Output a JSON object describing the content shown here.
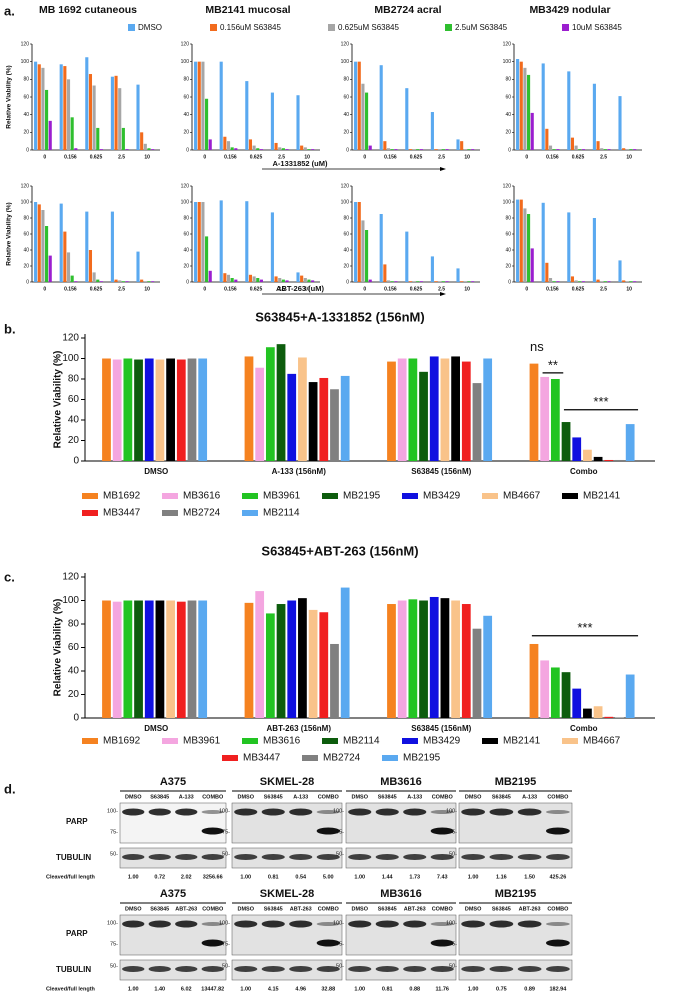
{
  "panel_labels": [
    "a.",
    "b.",
    "c.",
    "d."
  ],
  "chart_data": [
    {
      "type": "bar",
      "titles": [
        "MB 1692 cutaneous",
        "MB2141 mucosal",
        "MB2724 acral",
        "MB3429 nodular"
      ],
      "xlabels": [
        "A-1331852 (uM)",
        "ABT-263 (uM)"
      ],
      "ylabel": "Relative Viability (%)",
      "categories": [
        "0",
        "0.156",
        "0.625",
        "2.5",
        "10"
      ],
      "legend": [
        {
          "name": "DMSO",
          "color": "#5aa9f0"
        },
        {
          "name": "0.156uM S63845",
          "color": "#f26b1d"
        },
        {
          "name": "0.625uM S63845",
          "color": "#a6a6a6"
        },
        {
          "name": "2.5uM S63845",
          "color": "#2fbf2f"
        },
        {
          "name": "10uM S63845",
          "color": "#9b1ecf"
        }
      ],
      "ylim": [
        0,
        120
      ],
      "yticks": [
        0,
        20,
        40,
        60,
        80,
        100,
        120
      ],
      "subplots": [
        [
          {
            "series": [
              {
                "values": [
                  100,
                  97,
                  105,
                  83,
                  74
                ]
              },
              {
                "values": [
                  97,
                  95,
                  86,
                  84,
                  20
                ]
              },
              {
                "values": [
                  93,
                  80,
                  73,
                  70,
                  7
                ]
              },
              {
                "values": [
                  68,
                  37,
                  25,
                  25,
                  2
                ]
              },
              {
                "values": [
                  33,
                  2,
                  1,
                  1,
                  1
                ]
              }
            ]
          },
          {
            "series": [
              {
                "values": [
                  100,
                  100,
                  78,
                  65,
                  62
                ]
              },
              {
                "values": [
                  100,
                  15,
                  12,
                  8,
                  5
                ]
              },
              {
                "values": [
                  100,
                  10,
                  5,
                  3,
                  3
                ]
              },
              {
                "values": [
                  58,
                  3,
                  2,
                  2,
                  1
                ]
              },
              {
                "values": [
                  12,
                  2,
                  1,
                  1,
                  1
                ]
              }
            ]
          },
          {
            "series": [
              {
                "values": [
                  100,
                  96,
                  70,
                  43,
                  12
                ]
              },
              {
                "values": [
                  100,
                  10,
                  1,
                  1,
                  10
                ]
              },
              {
                "values": [
                  75,
                  2,
                  1,
                  1,
                  1
                ]
              },
              {
                "values": [
                  65,
                  1,
                  1,
                  1,
                  1
                ]
              },
              {
                "values": [
                  5,
                  1,
                  1,
                  1,
                  1
                ]
              }
            ]
          },
          {
            "series": [
              {
                "values": [
                  103,
                  98,
                  89,
                  75,
                  61
                ]
              },
              {
                "values": [
                  100,
                  24,
                  14,
                  10,
                  2
                ]
              },
              {
                "values": [
                  93,
                  5,
                  5,
                  2,
                  1
                ]
              },
              {
                "values": [
                  85,
                  1,
                  1,
                  1,
                  1
                ]
              },
              {
                "values": [
                  42,
                  1,
                  1,
                  1,
                  1
                ]
              }
            ]
          }
        ],
        [
          {
            "series": [
              {
                "values": [
                  100,
                  98,
                  88,
                  88,
                  38
                ]
              },
              {
                "values": [
                  97,
                  63,
                  40,
                  3,
                  3
                ]
              },
              {
                "values": [
                  90,
                  37,
                  12,
                  2,
                  1
                ]
              },
              {
                "values": [
                  70,
                  8,
                  3,
                  1,
                  1
                ]
              },
              {
                "values": [
                  33,
                  1,
                  1,
                  1,
                  1
                ]
              }
            ]
          },
          {
            "series": [
              {
                "values": [
                  100,
                  102,
                  101,
                  87,
                  12
                ]
              },
              {
                "values": [
                  100,
                  11,
                  9,
                  7,
                  8
                ]
              },
              {
                "values": [
                  100,
                  9,
                  7,
                  5,
                  5
                ]
              },
              {
                "values": [
                  57,
                  5,
                  5,
                  3,
                  3
                ]
              },
              {
                "values": [
                  14,
                  3,
                  3,
                  2,
                  2
                ]
              }
            ]
          },
          {
            "series": [
              {
                "values": [
                  100,
                  85,
                  63,
                  32,
                  17
                ]
              },
              {
                "values": [
                  100,
                  22,
                  1,
                  1,
                  1
                ]
              },
              {
                "values": [
                  77,
                  2,
                  1,
                  1,
                  1
                ]
              },
              {
                "values": [
                  65,
                  1,
                  1,
                  1,
                  1
                ]
              },
              {
                "values": [
                  3,
                  1,
                  1,
                  1,
                  1
                ]
              }
            ]
          },
          {
            "series": [
              {
                "values": [
                  103,
                  99,
                  87,
                  80,
                  27
                ]
              },
              {
                "values": [
                  103,
                  24,
                  7,
                  3,
                  2
                ]
              },
              {
                "values": [
                  92,
                  5,
                  2,
                  1,
                  1
                ]
              },
              {
                "values": [
                  85,
                  1,
                  1,
                  1,
                  1
                ]
              },
              {
                "values": [
                  42,
                  1,
                  1,
                  1,
                  1
                ]
              }
            ]
          }
        ]
      ]
    },
    {
      "type": "bar",
      "title": "S63845+A-1331852 (156nM)",
      "ylabel": "Relative Viability (%)",
      "categories": [
        "DMSO",
        "A-133 (156nM)",
        "S63845 (156nM)",
        "Combo"
      ],
      "ylim": [
        0,
        120
      ],
      "yticks": [
        0,
        20,
        40,
        60,
        80,
        100,
        120
      ],
      "series": [
        {
          "name": "MB1692",
          "color": "#f58220",
          "values": [
            100,
            102,
            97,
            95
          ]
        },
        {
          "name": "MB3616",
          "color": "#f4a6e0",
          "values": [
            99,
            91,
            100,
            82
          ]
        },
        {
          "name": "MB3961",
          "color": "#22c422",
          "values": [
            100,
            111,
            100,
            80
          ]
        },
        {
          "name": "MB2195",
          "color": "#0d5c0d",
          "values": [
            99,
            114,
            87,
            38
          ]
        },
        {
          "name": "MB3429",
          "color": "#1010e0",
          "values": [
            100,
            85,
            102,
            23
          ]
        },
        {
          "name": "MB4667",
          "color": "#f9c38a",
          "values": [
            99,
            101,
            100,
            11
          ]
        },
        {
          "name": "MB2141",
          "color": "#000000",
          "values": [
            100,
            77,
            102,
            4
          ]
        },
        {
          "name": "MB3447",
          "color": "#f02020",
          "values": [
            99,
            81,
            97,
            1
          ]
        },
        {
          "name": "MB2724",
          "color": "#808080",
          "values": [
            100,
            70,
            76,
            1
          ]
        },
        {
          "name": "MB2114",
          "color": "#5aa9f0",
          "values": [
            100,
            83,
            100,
            36
          ]
        }
      ],
      "annotations": [
        "ns",
        "**",
        "***"
      ]
    },
    {
      "type": "bar",
      "title": "S63845+ABT-263 (156nM)",
      "ylabel": "Relative Viability (%)",
      "categories": [
        "DMSO",
        "ABT-263 (156nM)",
        "S63845 (156nM)",
        "Combo"
      ],
      "ylim": [
        0,
        120
      ],
      "yticks": [
        0,
        20,
        40,
        60,
        80,
        100,
        120
      ],
      "series": [
        {
          "name": "MB1692",
          "color": "#f58220",
          "values": [
            100,
            98,
            97,
            63
          ]
        },
        {
          "name": "MB3961",
          "color": "#f4a6e0",
          "values": [
            99,
            108,
            100,
            49
          ]
        },
        {
          "name": "MB3616",
          "color": "#22c422",
          "values": [
            100,
            89,
            101,
            43
          ]
        },
        {
          "name": "MB2114",
          "color": "#0d5c0d",
          "values": [
            100,
            97,
            100,
            39
          ]
        },
        {
          "name": "MB3429",
          "color": "#1010e0",
          "values": [
            100,
            100,
            103,
            25
          ]
        },
        {
          "name": "MB2141",
          "color": "#000000",
          "values": [
            100,
            102,
            102,
            8
          ]
        },
        {
          "name": "MB4667",
          "color": "#f9c38a",
          "values": [
            100,
            92,
            100,
            10
          ]
        },
        {
          "name": "MB3447",
          "color": "#f02020",
          "values": [
            99,
            90,
            97,
            1
          ]
        },
        {
          "name": "MB2724",
          "color": "#808080",
          "values": [
            100,
            63,
            76,
            0.5
          ]
        },
        {
          "name": "MB2195",
          "color": "#5aa9f0",
          "values": [
            100,
            111,
            87,
            37
          ]
        }
      ],
      "annotations": [
        "***"
      ]
    }
  ],
  "blots": {
    "markers": {
      "parp": "PARP",
      "tubulin": "TUBULIN",
      "m100": "100-",
      "m75": "75-",
      "m50": "50-",
      "ratio_label": "Cleaved/full length"
    },
    "rows": [
      {
        "panels": [
          {
            "title": "A375",
            "lanes": [
              "DMSO",
              "S63845",
              "A-133",
              "COMBO"
            ],
            "ratios": [
              "1.00",
              "0.72",
              "2.02",
              "3256.66"
            ]
          },
          {
            "title": "SKMEL-28",
            "lanes": [
              "DMSO",
              "S63845",
              "A-133",
              "COMBO"
            ],
            "ratios": [
              "1.00",
              "0.81",
              "0.54",
              "5.00"
            ]
          },
          {
            "title": "MB3616",
            "lanes": [
              "DMSO",
              "S63845",
              "A-133",
              "COMBO"
            ],
            "ratios": [
              "1.00",
              "1.44",
              "1.73",
              "7.43"
            ]
          },
          {
            "title": "MB2195",
            "lanes": [
              "DMSO",
              "S63845",
              "A-133",
              "COMBO"
            ],
            "ratios": [
              "1.00",
              "1.16",
              "1.50",
              "425.26"
            ]
          }
        ]
      },
      {
        "panels": [
          {
            "title": "A375",
            "lanes": [
              "DMSO",
              "S63845",
              "ABT-263",
              "COMBO"
            ],
            "ratios": [
              "1.00",
              "1.40",
              "6.02",
              "13447.82"
            ]
          },
          {
            "title": "SKMEL-28",
            "lanes": [
              "DMSO",
              "S63845",
              "ABT-263",
              "COMBO"
            ],
            "ratios": [
              "1.00",
              "4.15",
              "4.96",
              "32.88"
            ]
          },
          {
            "title": "MB3616",
            "lanes": [
              "DMSO",
              "S63845",
              "ABT-263",
              "COMBO"
            ],
            "ratios": [
              "1.00",
              "0.81",
              "0.88",
              "11.76"
            ]
          },
          {
            "title": "MB2195",
            "lanes": [
              "DMSO",
              "S63845",
              "ABT-263",
              "COMBO"
            ],
            "ratios": [
              "1.00",
              "0.75",
              "0.89",
              "182.94"
            ]
          }
        ]
      }
    ]
  }
}
